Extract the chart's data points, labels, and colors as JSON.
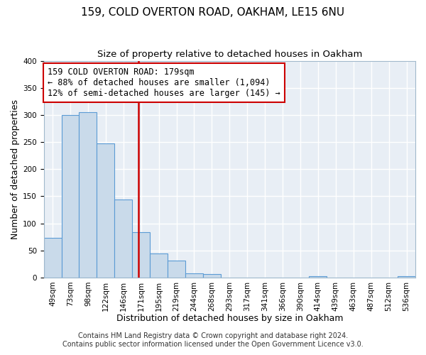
{
  "title": "159, COLD OVERTON ROAD, OAKHAM, LE15 6NU",
  "subtitle": "Size of property relative to detached houses in Oakham",
  "xlabel": "Distribution of detached houses by size in Oakham",
  "ylabel": "Number of detached properties",
  "bin_labels": [
    "49sqm",
    "73sqm",
    "98sqm",
    "122sqm",
    "146sqm",
    "171sqm",
    "195sqm",
    "219sqm",
    "244sqm",
    "268sqm",
    "293sqm",
    "317sqm",
    "341sqm",
    "366sqm",
    "390sqm",
    "414sqm",
    "439sqm",
    "463sqm",
    "487sqm",
    "512sqm",
    "536sqm"
  ],
  "bar_heights": [
    73,
    300,
    305,
    248,
    144,
    83,
    44,
    31,
    8,
    6,
    0,
    0,
    0,
    0,
    0,
    3,
    0,
    0,
    0,
    0,
    3
  ],
  "bar_color": "#c9daea",
  "bar_edge_color": "#5b9bd5",
  "vline_x": 5.333,
  "vline_color": "#cc0000",
  "annotation_text": "159 COLD OVERTON ROAD: 179sqm\n← 88% of detached houses are smaller (1,094)\n12% of semi-detached houses are larger (145) →",
  "annotation_box_color": "#ffffff",
  "annotation_box_edge_color": "#cc0000",
  "ylim": [
    0,
    400
  ],
  "yticks": [
    0,
    50,
    100,
    150,
    200,
    250,
    300,
    350,
    400
  ],
  "footer_line1": "Contains HM Land Registry data © Crown copyright and database right 2024.",
  "footer_line2": "Contains public sector information licensed under the Open Government Licence v3.0.",
  "plot_bg_color": "#e8eef5",
  "fig_bg_color": "#ffffff",
  "grid_color": "#ffffff",
  "title_fontsize": 11,
  "subtitle_fontsize": 9.5,
  "axis_label_fontsize": 9,
  "tick_fontsize": 7.5,
  "annotation_fontsize": 8.5,
  "footer_fontsize": 7
}
